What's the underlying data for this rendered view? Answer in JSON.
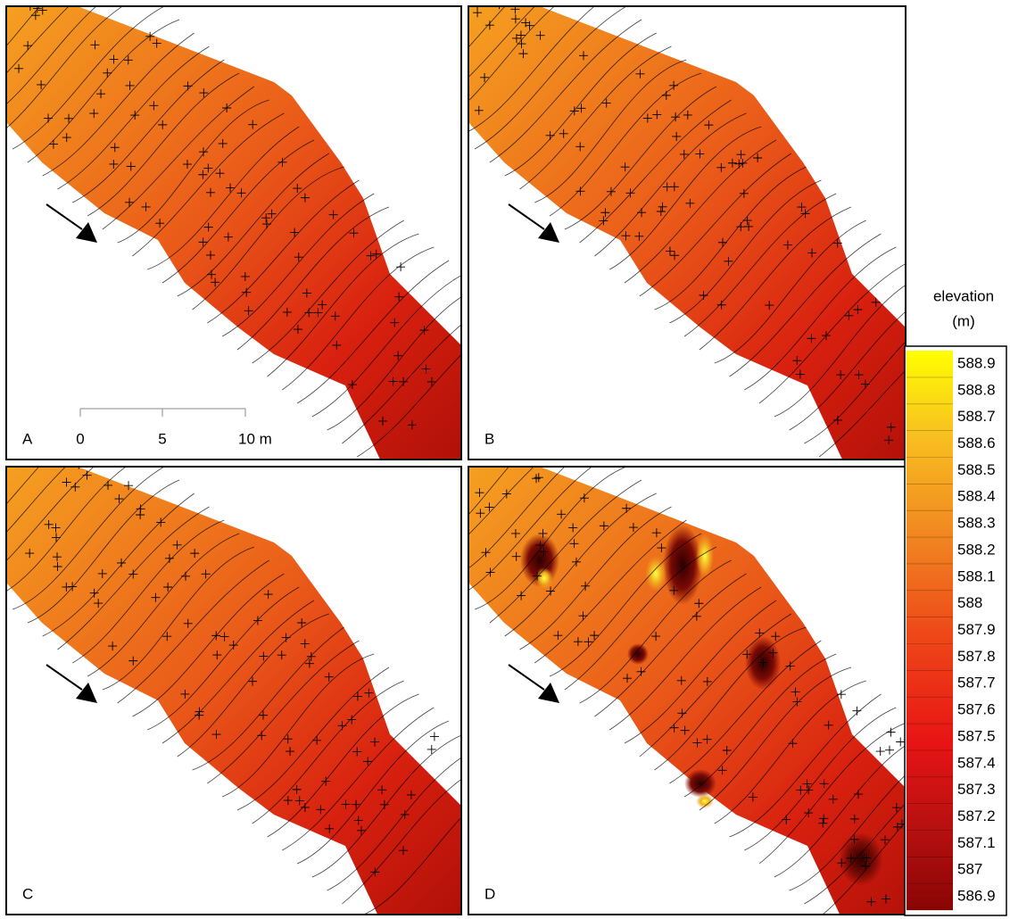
{
  "panels": [
    {
      "label": "A"
    },
    {
      "label": "B"
    },
    {
      "label": "C"
    },
    {
      "label": "D"
    }
  ],
  "scale_bar": {
    "labels": [
      "0",
      "5",
      "10 m"
    ]
  },
  "legend": {
    "title": "elevation",
    "unit": "(m)",
    "lim": [
      586.85,
      588.95
    ],
    "ticks": [
      588.9,
      588.8,
      588.7,
      588.6,
      588.5,
      588.4,
      588.3,
      588.2,
      588.1,
      588,
      587.9,
      587.8,
      587.7,
      587.6,
      587.5,
      587.4,
      587.3,
      587.2,
      587.1,
      587,
      586.9
    ]
  }
}
